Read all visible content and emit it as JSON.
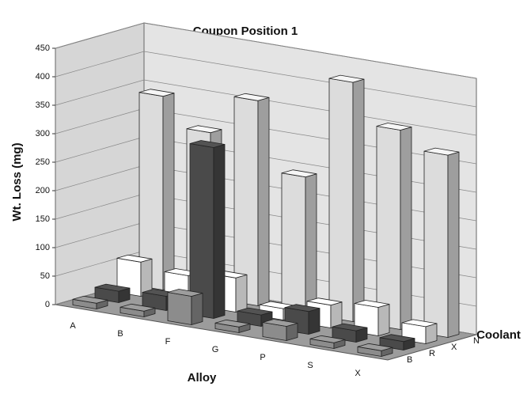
{
  "chart_data": {
    "type": "bar3d",
    "title": "Coupon Position 1",
    "y_label": "Wt. Loss (mg)",
    "x_label": "Alloy",
    "z_label": "Coolant",
    "categories": [
      "A",
      "B",
      "F",
      "G",
      "P",
      "S",
      "X"
    ],
    "series": [
      {
        "name": "B",
        "color": "#8c8c8c",
        "values": [
          10,
          10,
          50,
          10,
          25,
          10,
          10
        ]
      },
      {
        "name": "R",
        "color": "#4a4a4a",
        "values": [
          20,
          25,
          300,
          20,
          40,
          20,
          15
        ]
      },
      {
        "name": "X",
        "color": "#ffffff",
        "values": [
          60,
          50,
          60,
          20,
          40,
          50,
          30
        ]
      },
      {
        "name": "N",
        "color": "#dcdcdc",
        "values": [
          340,
          290,
          360,
          240,
          420,
          350,
          320
        ]
      }
    ],
    "ylim": [
      0,
      450
    ],
    "yticks": [
      0,
      50,
      100,
      150,
      200,
      250,
      300,
      350,
      400,
      450
    ],
    "grid": true
  }
}
